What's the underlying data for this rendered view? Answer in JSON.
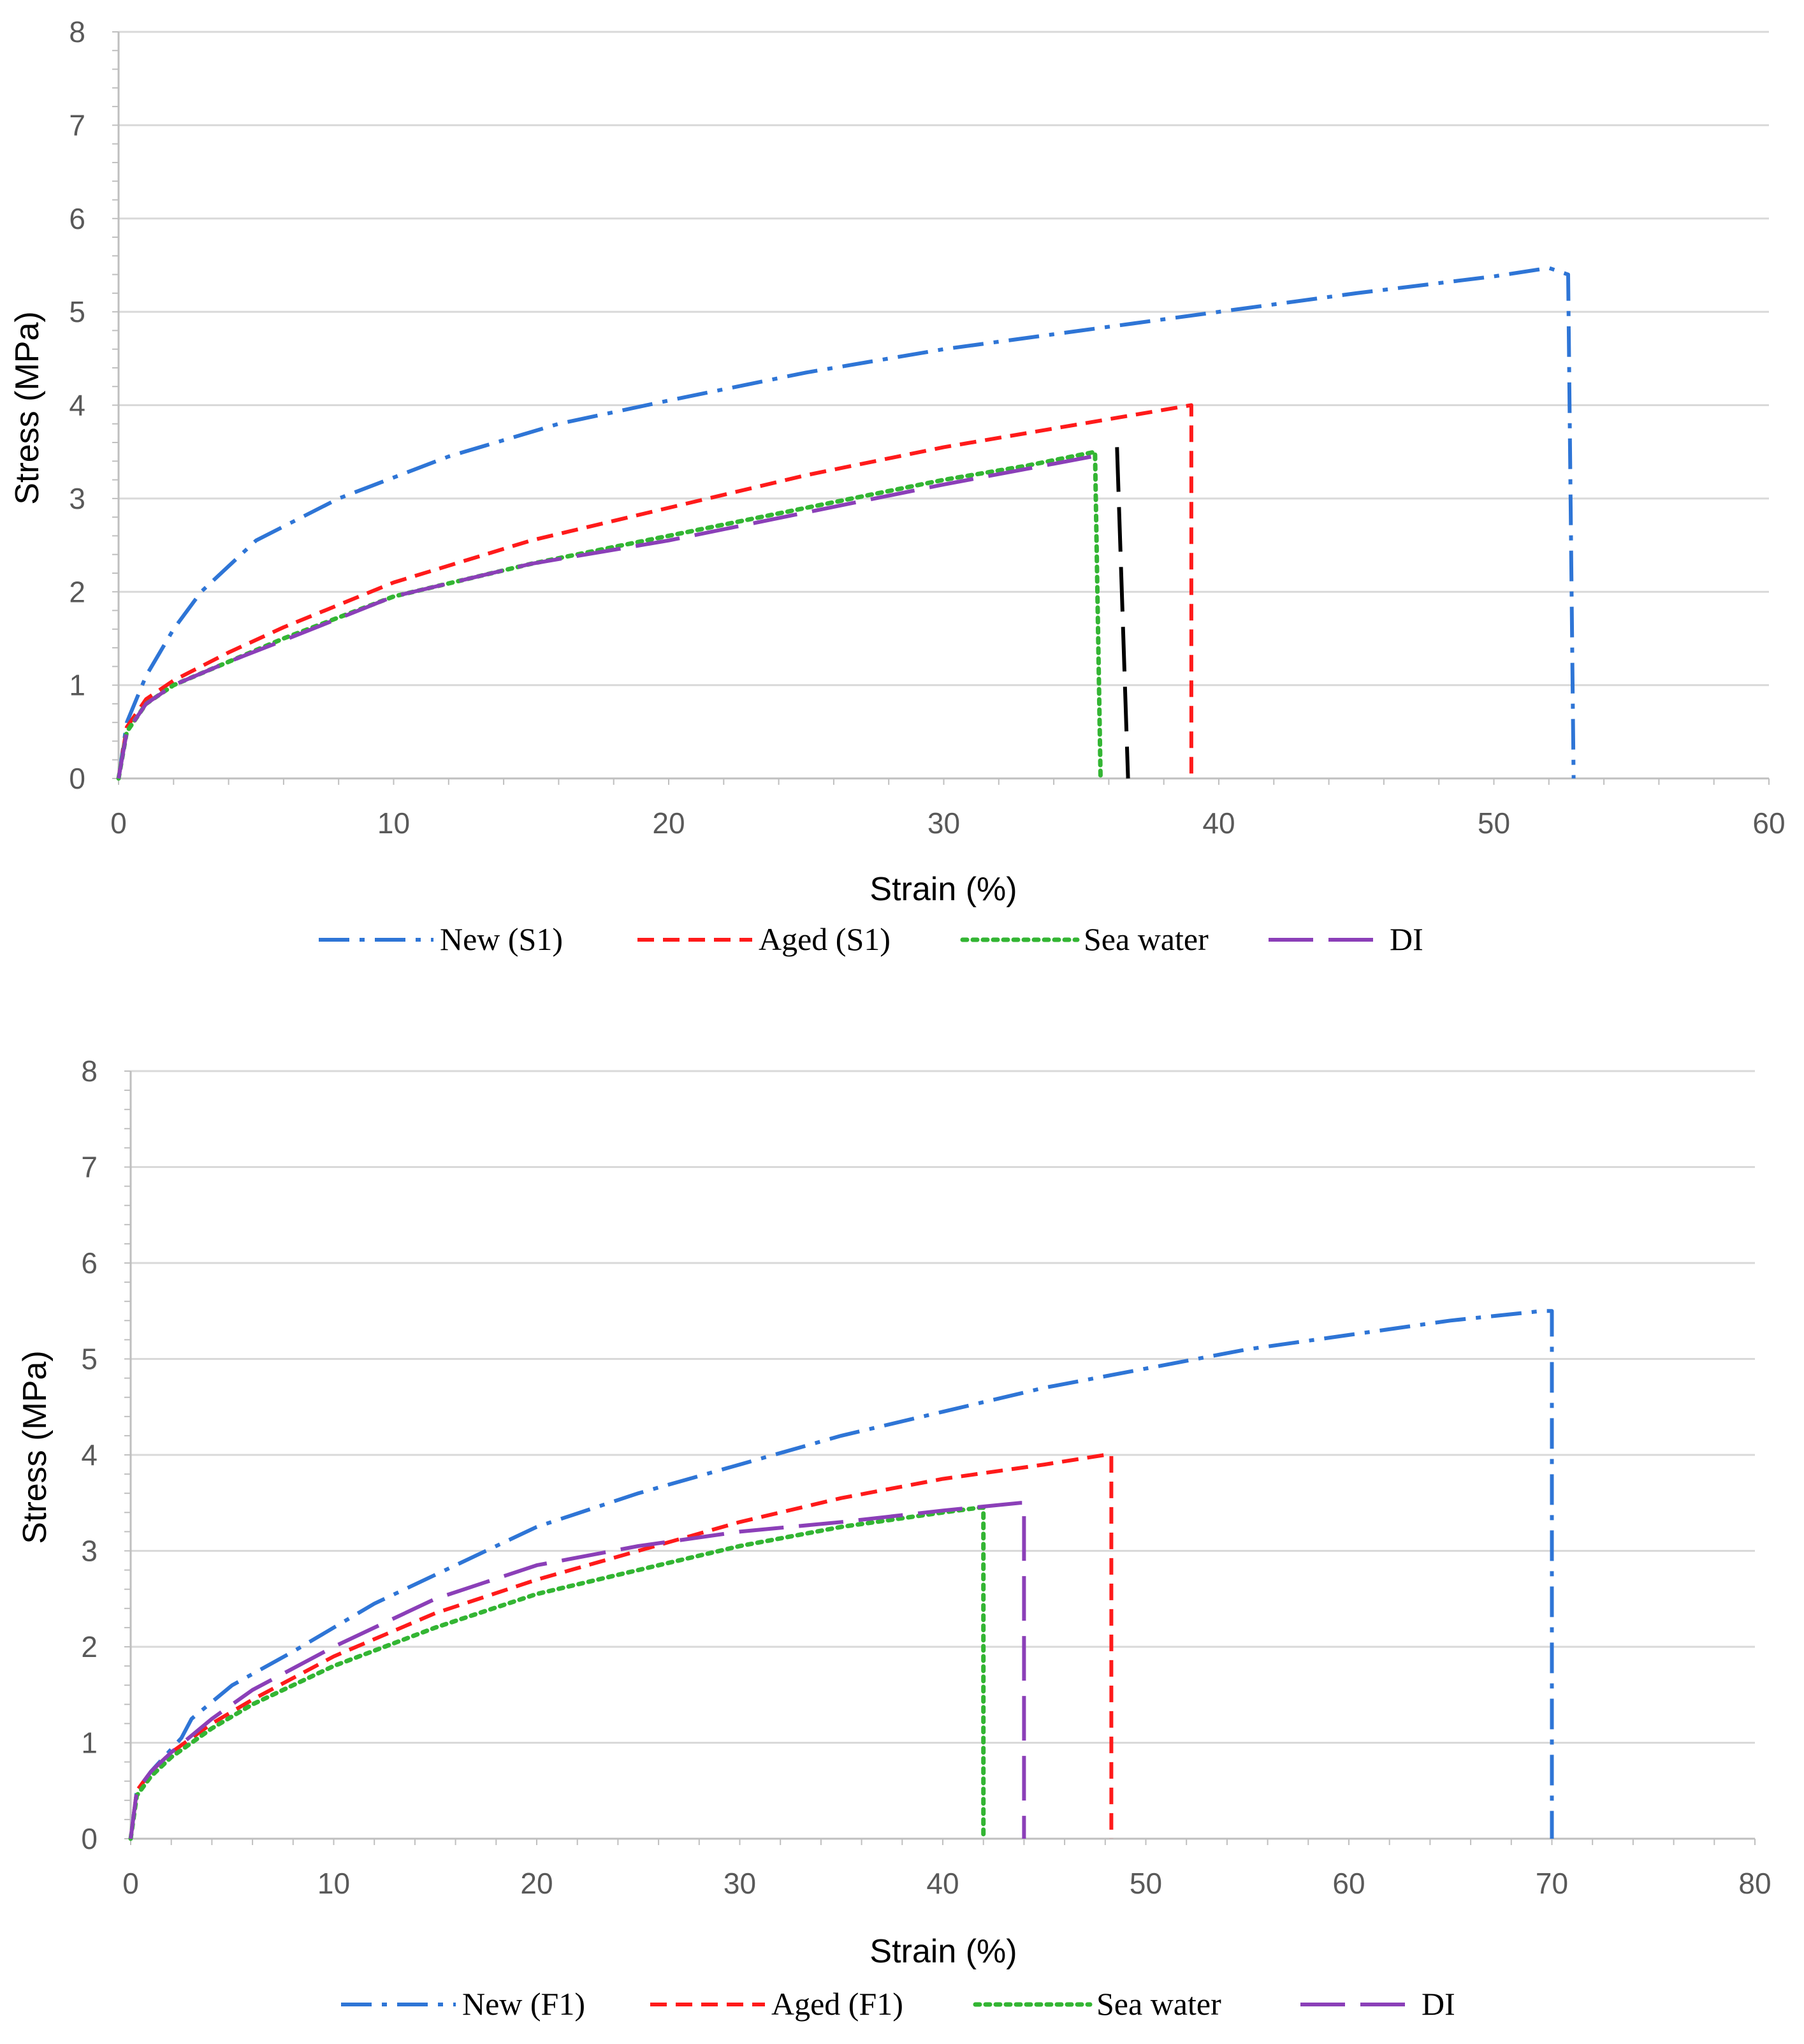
{
  "colors": {
    "new": "#2e75d6",
    "aged": "#ff1a1a",
    "sea": "#33b533",
    "di": "#8b3fb8",
    "black": "#000000"
  },
  "chart_data": [
    {
      "type": "line",
      "title": "",
      "xlabel": "Strain (%)",
      "ylabel": "Stress (MPa)",
      "xlim": [
        0,
        60
      ],
      "ylim": [
        0,
        8
      ],
      "xticks": [
        "0",
        "10",
        "20",
        "30",
        "40",
        "50",
        "60"
      ],
      "yticks": [
        "0",
        "1",
        "2",
        "3",
        "4",
        "5",
        "6",
        "7",
        "8"
      ],
      "grid": true,
      "legend_position": "bottom",
      "series": [
        {
          "name": "New (S1)",
          "color": "#2e75d6",
          "style": "dashdot",
          "x": [
            0,
            0.3,
            1,
            2,
            3,
            5,
            8,
            12,
            16,
            20,
            25,
            30,
            35,
            40,
            45,
            50,
            52,
            52.7,
            52.9
          ],
          "y": [
            0,
            0.6,
            1.1,
            1.6,
            2.0,
            2.55,
            3.0,
            3.45,
            3.8,
            4.05,
            4.35,
            4.6,
            4.8,
            5.0,
            5.2,
            5.38,
            5.47,
            5.4,
            0
          ]
        },
        {
          "name": "Aged (S1)",
          "color": "#ff1a1a",
          "style": "dashed",
          "x": [
            0,
            0.3,
            1,
            2,
            4,
            6,
            10,
            15,
            20,
            25,
            30,
            35,
            38,
            39,
            39
          ],
          "y": [
            0,
            0.55,
            0.85,
            1.05,
            1.35,
            1.62,
            2.1,
            2.55,
            2.9,
            3.25,
            3.55,
            3.8,
            3.95,
            4.0,
            0
          ]
        },
        {
          "name": "Sea water",
          "color": "#33b533",
          "style": "dotted",
          "x": [
            0,
            0.3,
            1,
            2,
            4,
            6,
            10,
            15,
            20,
            25,
            30,
            33,
            35.5,
            35.7
          ],
          "y": [
            0,
            0.5,
            0.8,
            1.0,
            1.25,
            1.5,
            1.95,
            2.3,
            2.6,
            2.9,
            3.2,
            3.35,
            3.5,
            0
          ]
        },
        {
          "name": "DI",
          "color": "#8b3fb8",
          "style": "longdash",
          "x": [
            0,
            0.3,
            1,
            2,
            4,
            6,
            10,
            15,
            20,
            25,
            30,
            35.4
          ],
          "y": [
            0,
            0.5,
            0.8,
            1.0,
            1.25,
            1.48,
            1.95,
            2.3,
            2.55,
            2.85,
            3.15,
            3.45
          ]
        },
        {
          "name": "",
          "color": "#000000",
          "style": "longdash",
          "x": [
            36.3,
            36.7
          ],
          "y": [
            3.55,
            0
          ]
        }
      ]
    },
    {
      "type": "line",
      "title": "",
      "xlabel": "Strain (%)",
      "ylabel": "Stress (MPa)",
      "xlim": [
        0,
        80
      ],
      "ylim": [
        0,
        8
      ],
      "xticks": [
        "0",
        "10",
        "20",
        "30",
        "40",
        "50",
        "60",
        "70",
        "80"
      ],
      "yticks": [
        "0",
        "1",
        "2",
        "3",
        "4",
        "5",
        "6",
        "7",
        "8"
      ],
      "grid": true,
      "legend_position": "bottom",
      "series": [
        {
          "name": "New (F1)",
          "color": "#2e75d6",
          "style": "dashdot",
          "x": [
            0,
            0.3,
            1,
            2.5,
            3,
            5,
            8,
            12,
            16,
            20,
            25,
            30,
            35,
            40,
            45,
            50,
            55,
            60,
            65,
            69.5,
            70,
            70
          ],
          "y": [
            0,
            0.5,
            0.7,
            1.05,
            1.25,
            1.6,
            1.95,
            2.45,
            2.85,
            3.25,
            3.6,
            3.9,
            4.2,
            4.45,
            4.7,
            4.9,
            5.1,
            5.25,
            5.4,
            5.5,
            5.5,
            0
          ]
        },
        {
          "name": "Aged (F1)",
          "color": "#ff1a1a",
          "style": "dashed",
          "x": [
            0,
            0.3,
            1,
            2,
            4,
            6,
            10,
            15,
            20,
            25,
            30,
            35,
            40,
            45,
            48,
            48.3,
            48.3
          ],
          "y": [
            0,
            0.5,
            0.7,
            0.9,
            1.2,
            1.45,
            1.9,
            2.35,
            2.7,
            3.0,
            3.3,
            3.55,
            3.75,
            3.9,
            4.0,
            4.0,
            0
          ]
        },
        {
          "name": "Sea water",
          "color": "#33b533",
          "style": "dotted",
          "x": [
            0,
            0.3,
            1,
            2,
            4,
            6,
            10,
            15,
            20,
            25,
            30,
            35,
            40,
            41.8,
            42,
            42
          ],
          "y": [
            0,
            0.45,
            0.65,
            0.85,
            1.15,
            1.4,
            1.8,
            2.2,
            2.55,
            2.8,
            3.05,
            3.25,
            3.4,
            3.45,
            3.45,
            0
          ]
        },
        {
          "name": "DI",
          "color": "#8b3fb8",
          "style": "longdash",
          "x": [
            0,
            0.3,
            1,
            2,
            4,
            6,
            10,
            15,
            20,
            25,
            30,
            35,
            40,
            43.8,
            44,
            44
          ],
          "y": [
            0,
            0.5,
            0.7,
            0.9,
            1.25,
            1.55,
            2.0,
            2.5,
            2.85,
            3.05,
            3.2,
            3.3,
            3.42,
            3.5,
            3.5,
            0
          ]
        }
      ]
    }
  ]
}
